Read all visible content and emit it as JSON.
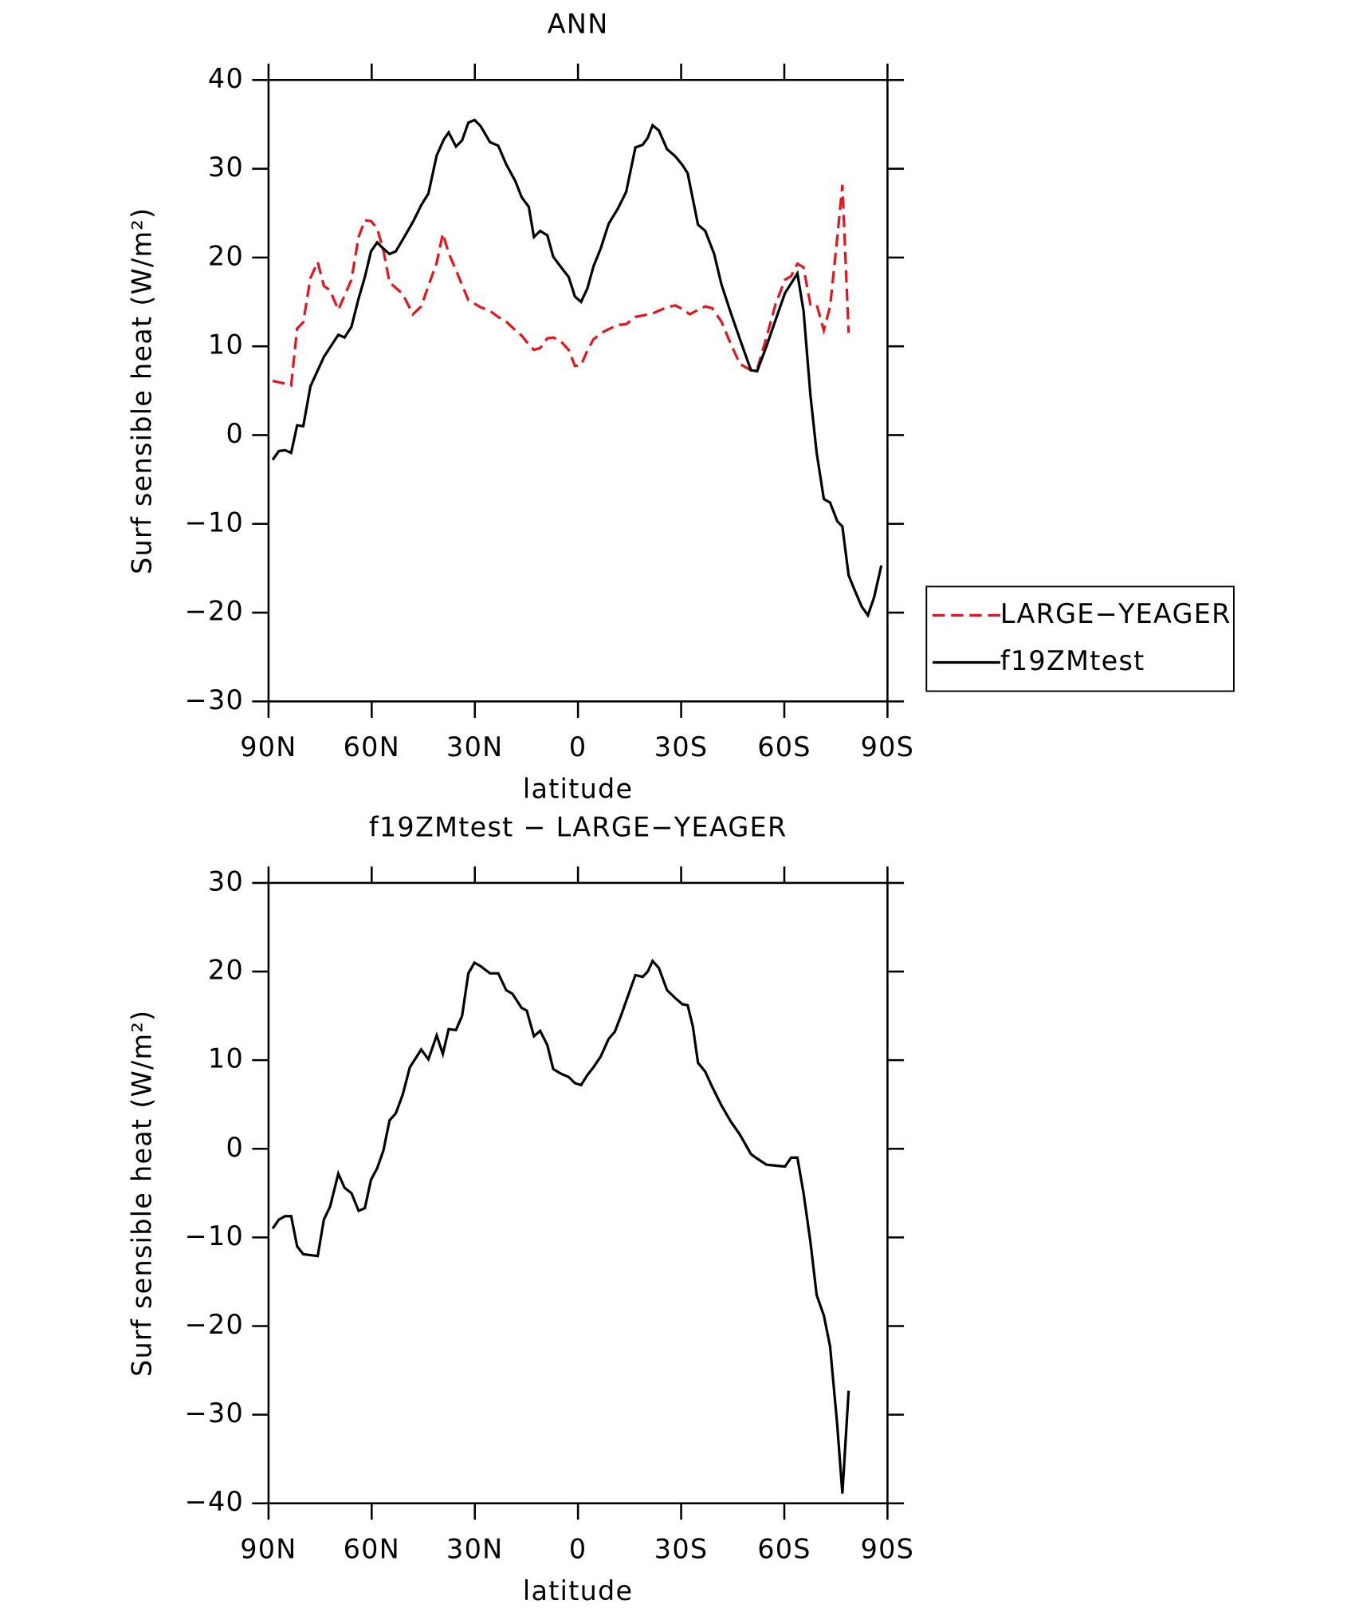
{
  "chart_data": [
    {
      "type": "line",
      "title": "ANN",
      "xlabel": "latitude",
      "ylabel": "Surf sensible heat (W/m²)",
      "xlim": [
        90,
        -90
      ],
      "xticks": [
        {
          "value": 90,
          "label": "90N"
        },
        {
          "value": 60,
          "label": "60N"
        },
        {
          "value": 30,
          "label": "30N"
        },
        0,
        {
          "value": -30,
          "label": "30S"
        },
        {
          "value": -60,
          "label": "60S"
        },
        {
          "value": -90,
          "label": "90S"
        }
      ],
      "ylim": [
        -30,
        40
      ],
      "yticks": [
        {
          "value": -30,
          "label": "−30"
        },
        {
          "value": -20,
          "label": "−20"
        },
        {
          "value": -10,
          "label": "−10"
        },
        0,
        10,
        20,
        30,
        40
      ],
      "legend": "right",
      "series": [
        {
          "name": "LARGE−YEAGER",
          "color": "#e8141b",
          "dash": true,
          "x": [
            88.8,
            85.2,
            83.4,
            81.7,
            79.9,
            77.8,
            75.7,
            73.9,
            72.1,
            69.7,
            65.9,
            63.8,
            62.0,
            60.2,
            58.4,
            56.6,
            54.8,
            51.0,
            48.0,
            45.6,
            43.5,
            41.1,
            39.3,
            37.6,
            35.5,
            31.9,
            28.3,
            25.6,
            23.2,
            20.9,
            18.2,
            16.4,
            14.3,
            12.8,
            11.0,
            8.9,
            7.2,
            5.1,
            2.7,
            0.9,
            -0.9,
            -2.7,
            -4.5,
            -7.7,
            -11.6,
            -14.0,
            -16.7,
            -21.7,
            -25.9,
            -28.3,
            -30.4,
            -32.5,
            -34.9,
            -37.0,
            -39.0,
            -41.7,
            -44.4,
            -47.1,
            -50.3,
            -52.1,
            -54.8,
            -57.5,
            -60.2,
            -62.0,
            -63.8,
            -65.6,
            -67.6,
            -69.4,
            -71.5,
            -73.3,
            -75.4,
            -76.9,
            -78.7
          ],
          "values": [
            6.1,
            5.8,
            5.6,
            12.0,
            12.7,
            17.7,
            19.5,
            16.8,
            16.3,
            14.1,
            17.5,
            22.3,
            24.2,
            24.1,
            23.3,
            20.8,
            17.2,
            15.9,
            13.6,
            14.5,
            16.8,
            19.4,
            22.7,
            20.5,
            18.6,
            15.2,
            14.4,
            14.0,
            13.3,
            12.8,
            11.8,
            11.2,
            10.2,
            9.6,
            9.8,
            10.9,
            11.0,
            10.6,
            9.6,
            7.8,
            7.9,
            9.5,
            10.8,
            11.7,
            12.4,
            12.5,
            13.3,
            13.7,
            14.4,
            14.6,
            14.2,
            13.6,
            14.1,
            14.5,
            14.3,
            12.8,
            10.3,
            8.0,
            7.3,
            7.4,
            11.0,
            14.8,
            17.5,
            17.9,
            19.3,
            18.9,
            14.7,
            14.7,
            11.8,
            14.5,
            22.2,
            28.2,
            11.5
          ]
        },
        {
          "name": "f19ZMtest",
          "color": "#000000",
          "dash": false,
          "x": [
            88.8,
            87.0,
            85.2,
            83.4,
            81.7,
            79.9,
            77.8,
            73.9,
            69.7,
            67.9,
            65.9,
            63.8,
            62.0,
            60.2,
            58.4,
            56.6,
            54.8,
            53.0,
            51.0,
            48.0,
            45.6,
            43.5,
            41.1,
            39.0,
            37.6,
            35.5,
            33.7,
            31.9,
            30.1,
            28.3,
            25.6,
            23.2,
            20.9,
            18.2,
            16.4,
            14.3,
            12.8,
            11.0,
            8.9,
            7.2,
            5.1,
            2.7,
            0.9,
            -0.9,
            -2.7,
            -4.5,
            -6.6,
            -8.9,
            -11.6,
            -14.0,
            -16.7,
            -18.8,
            -20.3,
            -21.7,
            -23.5,
            -25.9,
            -28.3,
            -30.4,
            -31.9,
            -34.9,
            -37.0,
            -39.6,
            -41.7,
            -44.4,
            -47.1,
            -50.3,
            -52.1,
            -54.8,
            -57.5,
            -60.2,
            -63.8,
            -65.6,
            -67.6,
            -69.4,
            -71.5,
            -73.3,
            -75.4,
            -76.9,
            -78.7,
            -80.5,
            -82.5,
            -84.3,
            -86.1,
            -88.2
          ],
          "values": [
            -2.8,
            -1.8,
            -1.7,
            -2.0,
            1.1,
            1.0,
            5.5,
            8.8,
            11.3,
            11.0,
            12.2,
            15.4,
            17.8,
            20.7,
            21.7,
            21.0,
            20.4,
            20.7,
            22.0,
            24.0,
            25.9,
            27.2,
            31.5,
            33.3,
            34.1,
            32.5,
            33.2,
            35.2,
            35.5,
            34.8,
            33.0,
            32.6,
            30.5,
            28.6,
            26.8,
            25.7,
            22.3,
            23.0,
            22.5,
            20.1,
            19.0,
            17.8,
            15.6,
            15.0,
            16.5,
            19.0,
            21.0,
            23.8,
            25.5,
            27.4,
            32.4,
            32.7,
            33.5,
            34.9,
            34.3,
            32.2,
            31.4,
            30.4,
            29.5,
            23.7,
            23.0,
            20.4,
            17.0,
            13.8,
            10.8,
            7.3,
            7.2,
            10.0,
            13.0,
            16.0,
            18.2,
            14.0,
            4.5,
            -2.0,
            -7.2,
            -7.6,
            -9.7,
            -10.3,
            -15.8,
            -17.5,
            -19.3,
            -20.3,
            -18.3,
            -14.7
          ]
        }
      ]
    },
    {
      "type": "line",
      "title": "f19ZMtest − LARGE−YEAGER",
      "xlabel": "latitude",
      "ylabel": "Surf sensible heat (W/m²)",
      "xlim": [
        90,
        -90
      ],
      "xticks": [
        {
          "value": 90,
          "label": "90N"
        },
        {
          "value": 60,
          "label": "60N"
        },
        {
          "value": 30,
          "label": "30N"
        },
        0,
        {
          "value": -30,
          "label": "30S"
        },
        {
          "value": -60,
          "label": "60S"
        },
        {
          "value": -90,
          "label": "90S"
        }
      ],
      "ylim": [
        -40,
        30
      ],
      "yticks": [
        {
          "value": -40,
          "label": "−40"
        },
        {
          "value": -30,
          "label": "−30"
        },
        {
          "value": -20,
          "label": "−20"
        },
        {
          "value": -10,
          "label": "−10"
        },
        0,
        10,
        20,
        30
      ],
      "series": [
        {
          "color": "#000000",
          "dash": false,
          "x": [
            88.8,
            87.0,
            85.2,
            83.4,
            81.7,
            79.9,
            75.7,
            73.9,
            72.1,
            69.7,
            67.9,
            65.9,
            63.8,
            62.0,
            60.2,
            58.4,
            56.6,
            54.8,
            53.0,
            51.0,
            48.9,
            47.1,
            45.6,
            43.5,
            41.1,
            39.3,
            37.6,
            35.5,
            33.7,
            31.9,
            30.1,
            28.3,
            25.6,
            23.2,
            20.9,
            19.1,
            16.4,
            14.9,
            12.8,
            11.0,
            8.9,
            7.2,
            5.1,
            2.7,
            0.9,
            -0.9,
            -2.7,
            -4.5,
            -6.6,
            -8.9,
            -10.7,
            -12.5,
            -16.7,
            -18.8,
            -20.3,
            -21.7,
            -23.5,
            -25.9,
            -28.3,
            -30.4,
            -31.9,
            -33.4,
            -34.9,
            -37.0,
            -39.0,
            -41.7,
            -44.4,
            -47.1,
            -50.3,
            -52.1,
            -54.8,
            -57.5,
            -60.2,
            -62.0,
            -63.8,
            -65.6,
            -67.6,
            -69.4,
            -71.5,
            -73.3,
            -75.4,
            -76.9,
            -78.7
          ],
          "values": [
            -9.0,
            -8.0,
            -7.6,
            -7.6,
            -11.0,
            -11.9,
            -12.1,
            -8.0,
            -6.5,
            -2.8,
            -4.4,
            -5.0,
            -7.0,
            -6.7,
            -3.5,
            -2.2,
            -0.2,
            3.2,
            4.0,
            6.1,
            9.2,
            10.3,
            11.2,
            10.1,
            12.8,
            10.7,
            13.5,
            13.4,
            15.0,
            19.8,
            21.0,
            20.6,
            19.8,
            19.8,
            17.9,
            17.5,
            15.9,
            15.6,
            12.7,
            13.3,
            11.7,
            9.0,
            8.5,
            8.1,
            7.4,
            7.2,
            8.3,
            9.2,
            10.4,
            12.4,
            13.2,
            15.0,
            19.6,
            19.4,
            20.0,
            21.2,
            20.4,
            17.9,
            17.0,
            16.3,
            16.2,
            13.8,
            9.7,
            8.7,
            7.0,
            4.9,
            3.1,
            1.6,
            -0.6,
            -1.1,
            -1.8,
            -1.9,
            -2.0,
            -1.0,
            -1.0,
            -5.0,
            -10.5,
            -16.5,
            -18.8,
            -22.3,
            -31.2,
            -38.9,
            -27.3
          ]
        }
      ]
    }
  ]
}
